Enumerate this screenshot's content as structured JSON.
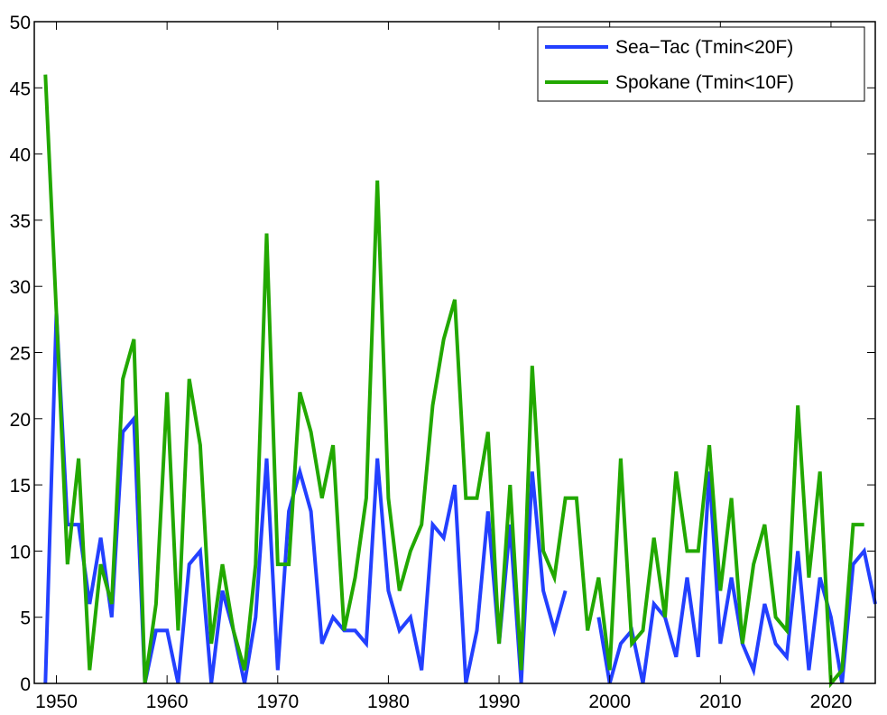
{
  "chart_data": {
    "type": "line",
    "title": "",
    "xlabel": "",
    "ylabel": "",
    "xlim": [
      1948,
      2024
    ],
    "ylim": [
      0,
      50
    ],
    "grid": false,
    "legend_position": "top-right",
    "xticks": [
      1950,
      1960,
      1970,
      1980,
      1990,
      2000,
      2010,
      2020
    ],
    "yticks": [
      0,
      5,
      10,
      15,
      20,
      25,
      30,
      35,
      40,
      45,
      50
    ],
    "series": [
      {
        "name": "Sea−Tac (Tmin<20F)",
        "color": "#2340ff",
        "x": [
          1949,
          1950,
          1951,
          1952,
          1953,
          1954,
          1955,
          1956,
          1957,
          1958,
          1959,
          1960,
          1961,
          1962,
          1963,
          1964,
          1965,
          1966,
          1967,
          1968,
          1969,
          1970,
          1971,
          1972,
          1973,
          1974,
          1975,
          1976,
          1977,
          1978,
          1979,
          1980,
          1981,
          1982,
          1983,
          1984,
          1985,
          1986,
          1987,
          1988,
          1989,
          1990,
          1991,
          1992,
          1993,
          1994,
          1995,
          1996,
          1997,
          1998,
          1999,
          2000,
          2001,
          2002,
          2003,
          2004,
          2005,
          2006,
          2007,
          2008,
          2009,
          2010,
          2011,
          2012,
          2013,
          2014,
          2015,
          2016,
          2017,
          2018,
          2019,
          2020,
          2021,
          2022,
          2023,
          2024
        ],
        "values": [
          0,
          28,
          12,
          12,
          6,
          11,
          5,
          19,
          20,
          0,
          4,
          4,
          0,
          9,
          10,
          0,
          7,
          4,
          0,
          5,
          17,
          1,
          13,
          16,
          13,
          3,
          5,
          4,
          4,
          3,
          17,
          7,
          4,
          5,
          1,
          12,
          11,
          15,
          0,
          4,
          13,
          3,
          12,
          0,
          16,
          7,
          4,
          7,
          null,
          null,
          5,
          0,
          3,
          4,
          0,
          6,
          5,
          2,
          8,
          2,
          16,
          3,
          8,
          3,
          1,
          6,
          3,
          2,
          10,
          1,
          8,
          5,
          0,
          9,
          10,
          6
        ]
      },
      {
        "name": "Spokane (Tmin<10F)",
        "color": "#22a800",
        "x": [
          1949,
          1950,
          1951,
          1952,
          1953,
          1954,
          1955,
          1956,
          1957,
          1958,
          1959,
          1960,
          1961,
          1962,
          1963,
          1964,
          1965,
          1966,
          1967,
          1968,
          1969,
          1970,
          1971,
          1972,
          1973,
          1974,
          1975,
          1976,
          1977,
          1978,
          1979,
          1980,
          1981,
          1982,
          1983,
          1984,
          1985,
          1986,
          1987,
          1988,
          1989,
          1990,
          1991,
          1992,
          1993,
          1994,
          1995,
          1996,
          1997,
          1998,
          1999,
          2000,
          2001,
          2002,
          2003,
          2004,
          2005,
          2006,
          2007,
          2008,
          2009,
          2010,
          2011,
          2012,
          2013,
          2014,
          2015,
          2016,
          2017,
          2018,
          2019,
          2020,
          2021,
          2022,
          2023
        ],
        "values": [
          46,
          28,
          9,
          17,
          1,
          9,
          6,
          23,
          26,
          0,
          6,
          22,
          4,
          23,
          18,
          3,
          9,
          4,
          1,
          9,
          34,
          9,
          9,
          22,
          19,
          14,
          18,
          4,
          8,
          14,
          38,
          14,
          7,
          10,
          12,
          21,
          26,
          29,
          14,
          14,
          19,
          3,
          15,
          1,
          24,
          10,
          8,
          14,
          14,
          4,
          8,
          1,
          17,
          3,
          4,
          11,
          5,
          16,
          10,
          10,
          18,
          7,
          14,
          3,
          9,
          12,
          5,
          4,
          21,
          8,
          16,
          0,
          1,
          12,
          12
        ]
      }
    ]
  }
}
